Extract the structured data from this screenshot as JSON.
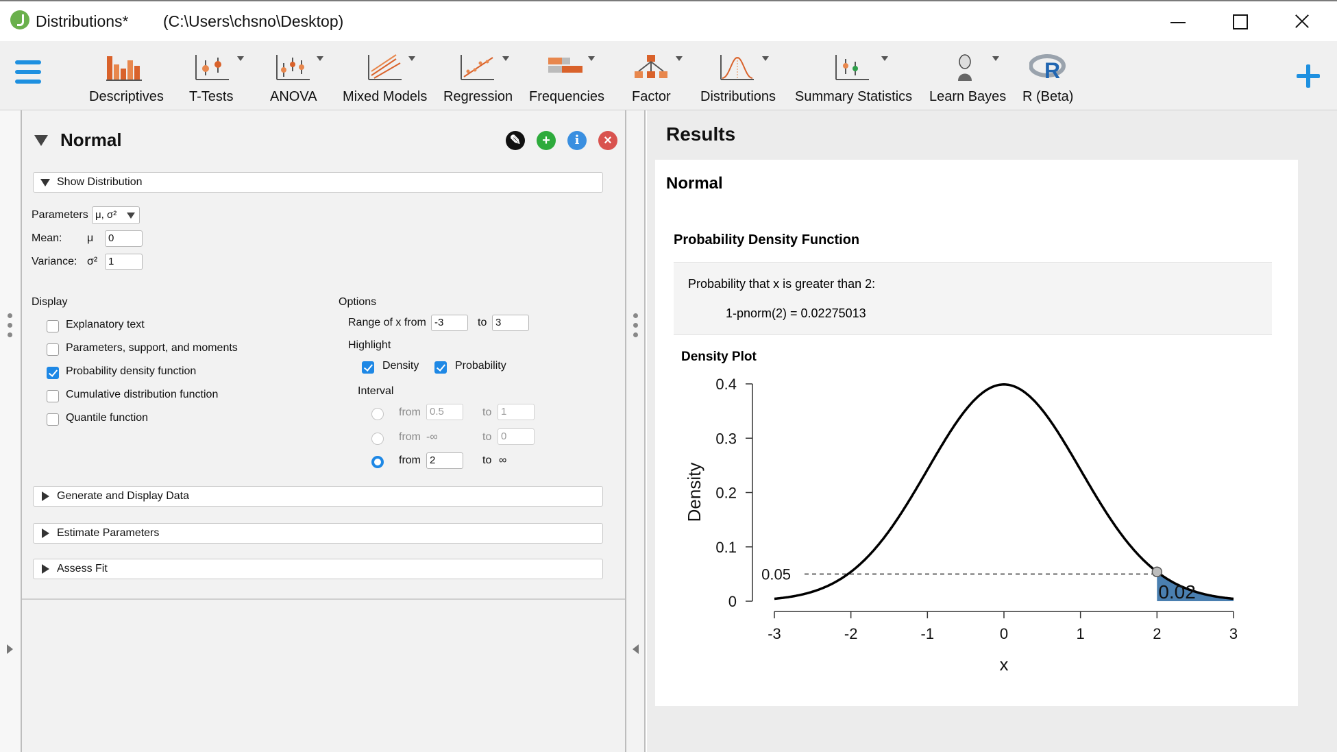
{
  "window": {
    "title": "Distributions*",
    "path": "(C:\\Users\\chsno\\Desktop)"
  },
  "ribbon": {
    "modules": [
      {
        "label": "Descriptives",
        "icon": "descriptives-icon"
      },
      {
        "label": "T-Tests",
        "icon": "t-tests-icon"
      },
      {
        "label": "ANOVA",
        "icon": "anova-icon"
      },
      {
        "label": "Mixed Models",
        "icon": "mixed-models-icon"
      },
      {
        "label": "Regression",
        "icon": "regression-icon"
      },
      {
        "label": "Frequencies",
        "icon": "frequencies-icon"
      },
      {
        "label": "Factor",
        "icon": "factor-icon"
      },
      {
        "label": "Distributions",
        "icon": "distributions-icon"
      },
      {
        "label": "Summary Statistics",
        "icon": "summary-statistics-icon"
      },
      {
        "label": "Learn Bayes",
        "icon": "learn-bayes-icon"
      },
      {
        "label": "R (Beta)",
        "icon": "r-icon"
      }
    ]
  },
  "form": {
    "title": "Normal",
    "show_distribution": "Show Distribution",
    "parameters_label": "Parameters",
    "parameters_value": "μ, σ²",
    "mean_label": "Mean:",
    "mean_symbol": "μ",
    "mean_value": "0",
    "variance_label": "Variance:",
    "variance_symbol": "σ²",
    "variance_value": "1",
    "display": {
      "heading": "Display",
      "items": [
        {
          "label": "Explanatory text",
          "checked": false
        },
        {
          "label": "Parameters, support, and moments",
          "checked": false
        },
        {
          "label": "Probability density function",
          "checked": true
        },
        {
          "label": "Cumulative distribution function",
          "checked": false
        },
        {
          "label": "Quantile function",
          "checked": false
        }
      ]
    },
    "options": {
      "heading": "Options",
      "range_label": "Range of x from",
      "range_from": "-3",
      "range_to_label": "to",
      "range_to": "3",
      "highlight_label": "Highlight",
      "density_label": "Density",
      "density_checked": true,
      "probability_label": "Probability",
      "probability_checked": true,
      "interval_label": "Interval",
      "intervals": [
        {
          "from_label": "from",
          "from": "0.5",
          "to_label": "to",
          "to": "1",
          "selected": false
        },
        {
          "from_label": "from",
          "from": "-∞",
          "to_label": "to",
          "to": "0",
          "selected": false
        },
        {
          "from_label": "from",
          "from": "2",
          "to_label": "to",
          "to": "∞",
          "selected": true
        }
      ]
    },
    "sections": [
      "Generate and Display Data",
      "Estimate Parameters",
      "Assess Fit"
    ]
  },
  "results": {
    "title": "Results",
    "analysis_title": "Normal",
    "pdf_title": "Probability Density Function",
    "prob_text": "Probability that x is greater than 2:",
    "formula": "1-pnorm(2)  = 0.02275013",
    "plot_title": "Density Plot"
  },
  "chart_data": {
    "type": "line",
    "title": "Density Plot",
    "xlabel": "x",
    "ylabel": "Density",
    "xlim": [
      -3,
      3
    ],
    "ylim": [
      0,
      0.4
    ],
    "x_ticks": [
      "-3",
      "-2",
      "-1",
      "0",
      "1",
      "2",
      "3"
    ],
    "y_ticks": [
      "0",
      "0.1",
      "0.2",
      "0.3",
      "0.4"
    ],
    "series": [
      {
        "function": "normal pdf",
        "mean": 0,
        "variance": 1
      }
    ],
    "highlight": {
      "x": 2,
      "density": 0.05,
      "density_label": "0.05",
      "shaded_from": 2,
      "shaded_to": 3,
      "probability_label": "0.02"
    },
    "colors": {
      "curve": "#000000",
      "shade": "#4a7fb0"
    }
  }
}
